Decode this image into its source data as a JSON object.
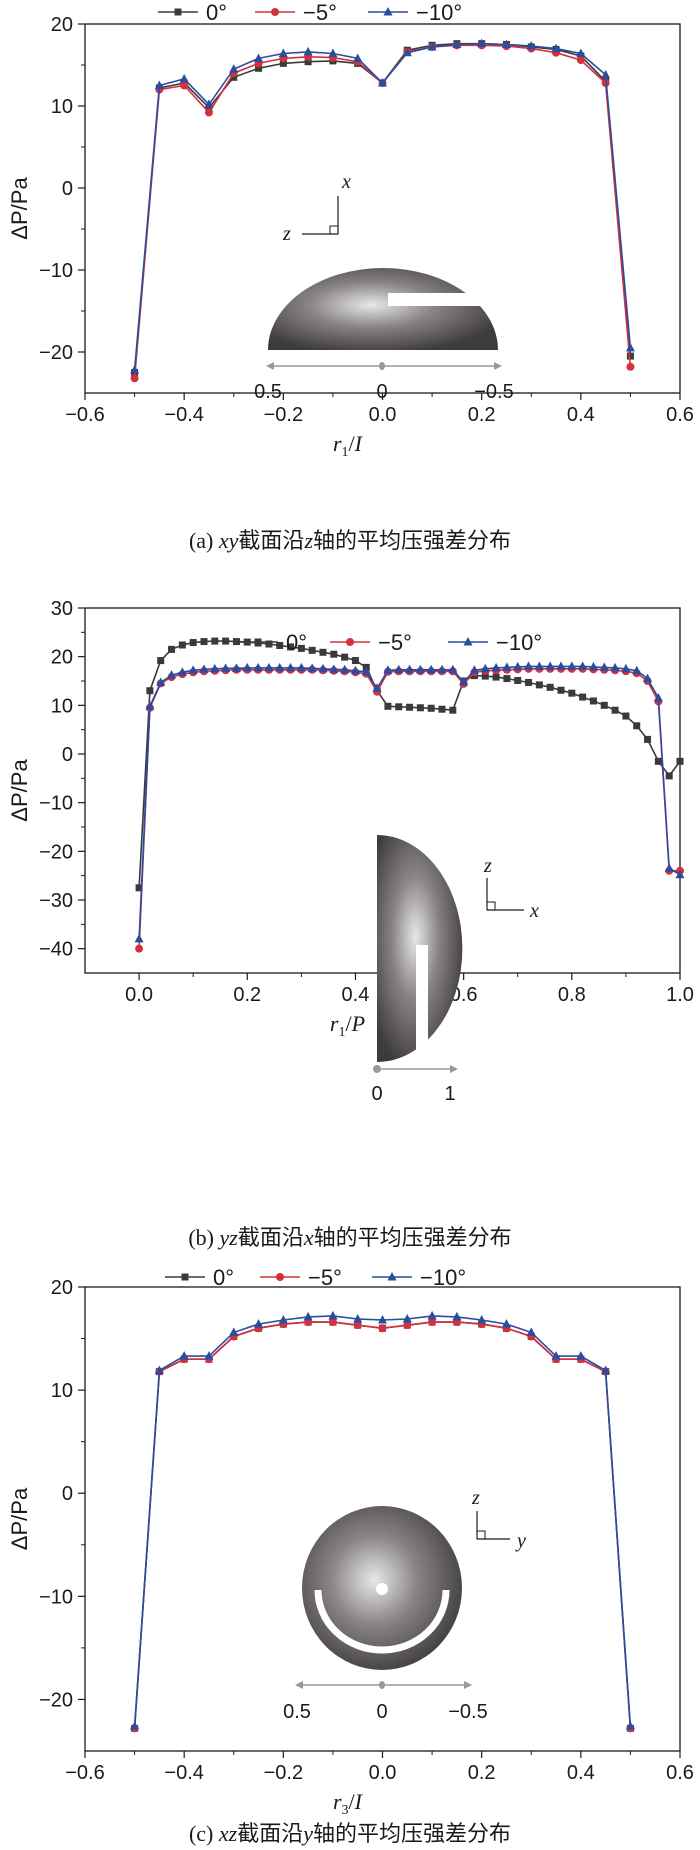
{
  "panels": [
    {
      "caption": {
        "prefix": "(a) ",
        "italic": "xy",
        "mid": "截面沿",
        "italic2": "z",
        "suffix": "轴的平均压强差分布"
      },
      "inset": {
        "type": "half-disk-horizontal",
        "labels": [
          "0.5",
          "0",
          "−0.5"
        ],
        "axes": [
          "x",
          "z"
        ]
      }
    },
    {
      "caption": {
        "prefix": "(b) ",
        "italic": "yz",
        "mid": "截面沿",
        "italic2": "x",
        "suffix": "轴的平均压强差分布"
      },
      "inset": {
        "type": "half-disk-vertical",
        "labels": [
          "0",
          "1"
        ],
        "axes": [
          "z",
          "x"
        ]
      }
    },
    {
      "caption": {
        "prefix": "(c) ",
        "italic": "xz",
        "mid": "截面沿",
        "italic2": "y",
        "suffix": "轴的平均压强差分布"
      },
      "inset": {
        "type": "full-disk",
        "labels": [
          "0.5",
          "0",
          "−0.5"
        ],
        "axes": [
          "z",
          "y"
        ]
      }
    }
  ],
  "colors": {
    "s0": "#3a3a3a",
    "s5": "#d6303f",
    "s10": "#2a4d9e"
  },
  "chart_data": [
    {
      "type": "line",
      "xlabel": {
        "var": "r",
        "sub": "1",
        "den": "I"
      },
      "ylabel": "ΔP/Pa",
      "xlim": [
        -0.6,
        0.6
      ],
      "ylim": [
        -25,
        20
      ],
      "xticks": [
        -0.6,
        -0.4,
        -0.2,
        0.0,
        0.2,
        0.4,
        0.6
      ],
      "xtick_labels": [
        "−0.6",
        "−0.4",
        "−0.2",
        "0.0",
        "0.2",
        "0.4",
        "0.6"
      ],
      "yticks": [
        -20,
        -10,
        0,
        10,
        20
      ],
      "ytick_labels": [
        "−20",
        "−10",
        "0",
        "10",
        "20"
      ],
      "legend": "top",
      "x": [
        -0.5,
        -0.45,
        -0.4,
        -0.35,
        -0.3,
        -0.25,
        -0.2,
        -0.15,
        -0.1,
        -0.05,
        0.0,
        0.05,
        0.1,
        0.15,
        0.2,
        0.25,
        0.3,
        0.35,
        0.4,
        0.45,
        0.5
      ],
      "series": [
        {
          "name": "0°",
          "marker": "square",
          "values": [
            -22.5,
            12.2,
            12.8,
            9.8,
            13.5,
            14.6,
            15.2,
            15.4,
            15.5,
            15.2,
            12.8,
            16.8,
            17.4,
            17.6,
            17.6,
            17.5,
            17.2,
            16.9,
            16.1,
            13.0,
            -20.5
          ]
        },
        {
          "name": "−5°",
          "marker": "circle",
          "values": [
            -23.2,
            12.0,
            12.5,
            9.2,
            14.0,
            15.2,
            15.8,
            16.0,
            15.9,
            15.4,
            12.8,
            16.6,
            17.2,
            17.4,
            17.4,
            17.3,
            17.0,
            16.5,
            15.6,
            12.8,
            -21.8
          ]
        },
        {
          "name": "−10°",
          "marker": "triangle",
          "values": [
            -22.2,
            12.5,
            13.3,
            10.2,
            14.5,
            15.8,
            16.4,
            16.6,
            16.4,
            15.8,
            12.8,
            16.5,
            17.2,
            17.5,
            17.6,
            17.5,
            17.3,
            17.0,
            16.4,
            13.8,
            -19.5
          ]
        }
      ]
    },
    {
      "type": "line",
      "xlabel": {
        "var": "r",
        "sub": "1",
        "den": "P"
      },
      "ylabel": "ΔP/Pa",
      "xlim": [
        -0.1,
        1.0
      ],
      "ylim": [
        -45,
        30
      ],
      "xticks": [
        0.0,
        0.2,
        0.4,
        0.6,
        0.8,
        1.0
      ],
      "xtick_labels": [
        "0.0",
        "0.2",
        "0.4",
        "0.6",
        "0.8",
        "1.0"
      ],
      "yticks": [
        -40,
        -30,
        -20,
        -10,
        0,
        10,
        20,
        30
      ],
      "ytick_labels": [
        "−40",
        "−30",
        "−20",
        "−10",
        "0",
        "10",
        "20",
        "30"
      ],
      "legend": "top",
      "x": [
        0.0,
        0.02,
        0.04,
        0.06,
        0.08,
        0.1,
        0.12,
        0.14,
        0.16,
        0.18,
        0.2,
        0.22,
        0.24,
        0.26,
        0.28,
        0.3,
        0.32,
        0.34,
        0.36,
        0.38,
        0.4,
        0.42,
        0.44,
        0.46,
        0.48,
        0.5,
        0.52,
        0.54,
        0.56,
        0.58,
        0.6,
        0.62,
        0.64,
        0.66,
        0.68,
        0.7,
        0.72,
        0.74,
        0.76,
        0.78,
        0.8,
        0.82,
        0.84,
        0.86,
        0.88,
        0.9,
        0.92,
        0.94,
        0.96,
        0.98,
        1.0
      ],
      "series": [
        {
          "name": "0°",
          "marker": "square",
          "values": [
            -27.5,
            13.0,
            19.2,
            21.5,
            22.4,
            22.9,
            23.1,
            23.2,
            23.2,
            23.1,
            23.0,
            22.8,
            22.6,
            22.3,
            22.0,
            21.7,
            21.3,
            20.9,
            20.5,
            19.9,
            19.2,
            17.8,
            13.0,
            9.8,
            9.7,
            9.6,
            9.5,
            9.4,
            9.2,
            9.0,
            15.0,
            16.1,
            16.0,
            15.8,
            15.5,
            15.1,
            14.7,
            14.2,
            13.7,
            13.1,
            12.5,
            11.7,
            10.9,
            10.0,
            9.0,
            7.8,
            5.8,
            3.0,
            -1.5,
            -4.5,
            -1.5
          ]
        },
        {
          "name": "−5°",
          "marker": "circle",
          "values": [
            -40.0,
            9.5,
            14.5,
            15.8,
            16.4,
            16.8,
            17.0,
            17.1,
            17.2,
            17.3,
            17.3,
            17.3,
            17.3,
            17.3,
            17.3,
            17.3,
            17.3,
            17.2,
            17.1,
            17.0,
            16.8,
            16.5,
            12.8,
            16.9,
            17.0,
            17.0,
            17.0,
            17.0,
            17.0,
            17.0,
            14.4,
            16.8,
            17.1,
            17.2,
            17.3,
            17.4,
            17.5,
            17.5,
            17.5,
            17.5,
            17.5,
            17.5,
            17.4,
            17.3,
            17.2,
            17.0,
            16.6,
            15.0,
            10.8,
            -24.0,
            -24.0
          ]
        },
        {
          "name": "−10°",
          "marker": "triangle",
          "values": [
            -38.0,
            9.8,
            14.7,
            16.2,
            16.8,
            17.2,
            17.4,
            17.5,
            17.6,
            17.6,
            17.7,
            17.7,
            17.7,
            17.7,
            17.7,
            17.7,
            17.6,
            17.5,
            17.4,
            17.3,
            17.1,
            16.9,
            13.5,
            17.2,
            17.3,
            17.3,
            17.3,
            17.3,
            17.3,
            17.3,
            14.8,
            17.2,
            17.5,
            17.7,
            17.8,
            17.9,
            18.0,
            18.0,
            18.0,
            18.0,
            18.0,
            18.0,
            17.9,
            17.8,
            17.7,
            17.5,
            17.1,
            15.5,
            11.5,
            -23.5,
            -24.8
          ]
        }
      ]
    },
    {
      "type": "line",
      "xlabel": {
        "var": "r",
        "sub": "3",
        "den": "I"
      },
      "ylabel": "ΔP/Pa",
      "xlim": [
        -0.6,
        0.6
      ],
      "ylim": [
        -25,
        20
      ],
      "xticks": [
        -0.6,
        -0.4,
        -0.2,
        0.0,
        0.2,
        0.4,
        0.6
      ],
      "xtick_labels": [
        "−0.6",
        "−0.4",
        "−0.2",
        "0.0",
        "0.2",
        "0.4",
        "0.6"
      ],
      "yticks": [
        -20,
        -10,
        0,
        10,
        20
      ],
      "ytick_labels": [
        "−20",
        "−10",
        "0",
        "10",
        "20"
      ],
      "legend": "top",
      "x": [
        -0.5,
        -0.45,
        -0.4,
        -0.35,
        -0.3,
        -0.25,
        -0.2,
        -0.15,
        -0.1,
        -0.05,
        0.0,
        0.05,
        0.1,
        0.15,
        0.2,
        0.25,
        0.3,
        0.35,
        0.4,
        0.45,
        0.5
      ],
      "series": [
        {
          "name": "0°",
          "marker": "square",
          "values": [
            -22.8,
            11.8,
            13.0,
            13.0,
            15.2,
            16.0,
            16.4,
            16.6,
            16.6,
            16.3,
            16.0,
            16.3,
            16.6,
            16.6,
            16.4,
            16.0,
            15.2,
            13.0,
            13.0,
            11.8,
            -22.8
          ]
        },
        {
          "name": "−5°",
          "marker": "circle",
          "values": [
            -22.8,
            11.8,
            13.0,
            13.0,
            15.2,
            16.0,
            16.4,
            16.6,
            16.6,
            16.3,
            16.0,
            16.3,
            16.6,
            16.6,
            16.4,
            16.0,
            15.2,
            13.0,
            13.0,
            11.8,
            -22.8
          ]
        },
        {
          "name": "−10°",
          "marker": "triangle",
          "values": [
            -22.6,
            11.9,
            13.3,
            13.3,
            15.6,
            16.4,
            16.8,
            17.1,
            17.2,
            16.9,
            16.8,
            16.9,
            17.2,
            17.1,
            16.8,
            16.4,
            15.6,
            13.3,
            13.3,
            11.9,
            -22.6
          ]
        }
      ]
    }
  ]
}
